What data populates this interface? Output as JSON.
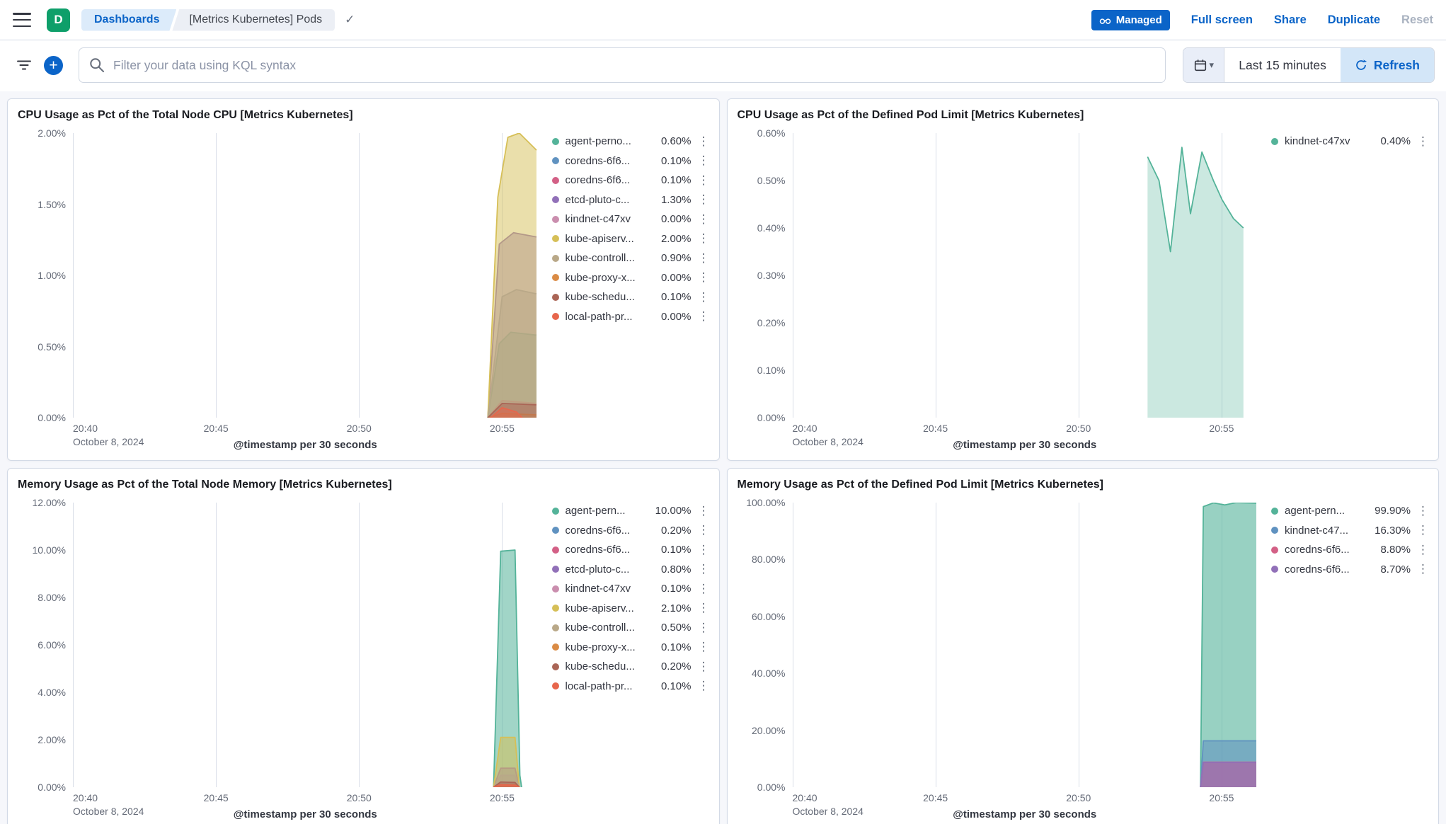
{
  "icons": {
    "legend_menu": "⋮",
    "breadcrumb_check": "✓",
    "chevron_down": "▾",
    "plus": "+"
  },
  "header": {
    "space_initial": "D",
    "breadcrumbs": [
      "Dashboards",
      "[Metrics Kubernetes] Pods"
    ],
    "managed_badge": "Managed",
    "actions": {
      "full_screen": "Full screen",
      "share": "Share",
      "duplicate": "Duplicate",
      "reset": "Reset"
    }
  },
  "toolbar": {
    "search_placeholder": "Filter your data using KQL syntax",
    "time_range": "Last 15 minutes",
    "refresh": "Refresh"
  },
  "panels": [
    {
      "title": "CPU Usage as Pct of the Total Node CPU [Metrics Kubernetes]",
      "axis_title": "@timestamp per 30 seconds",
      "chart": {
        "type": "area",
        "x_max": 16.25,
        "y_max": 2,
        "fill_opacity": 0.5,
        "x_ticks": [
          {
            "x": 0,
            "label": "20:40",
            "sub": "October 8, 2024"
          },
          {
            "x": 5,
            "label": "20:45"
          },
          {
            "x": 10,
            "label": "20:50"
          },
          {
            "x": 15,
            "label": "20:55"
          }
        ],
        "y_ticks": [
          {
            "v": 0,
            "label": "0.00%"
          },
          {
            "v": 0.5,
            "label": "0.50%"
          },
          {
            "v": 1,
            "label": "1.00%"
          },
          {
            "v": 1.5,
            "label": "1.50%"
          },
          {
            "v": 2,
            "label": "2.00%"
          }
        ],
        "series": [
          {
            "name": "agent-perno...",
            "value_label": "0.60%",
            "color": "#54B399",
            "points": [
              [
                14.5,
                0
              ],
              [
                14.9,
                0.52
              ],
              [
                15.3,
                0.6
              ],
              [
                16.2,
                0.58
              ]
            ]
          },
          {
            "name": "coredns-6f6...",
            "value_label": "0.10%",
            "color": "#6092C0",
            "points": [
              [
                14.5,
                0
              ],
              [
                15.0,
                0.1
              ],
              [
                16.2,
                0.1
              ]
            ]
          },
          {
            "name": "coredns-6f6...",
            "value_label": "0.10%",
            "color": "#D36086",
            "points": [
              [
                14.5,
                0
              ],
              [
                15.0,
                0.12
              ],
              [
                16.2,
                0.1
              ]
            ]
          },
          {
            "name": "etcd-pluto-c...",
            "value_label": "1.30%",
            "color": "#9170B8",
            "points": [
              [
                14.5,
                0
              ],
              [
                14.9,
                1.22
              ],
              [
                15.4,
                1.3
              ],
              [
                16.2,
                1.27
              ]
            ]
          },
          {
            "name": "kindnet-c47xv",
            "value_label": "0.00%",
            "color": "#CA8EAE",
            "points": [
              [
                14.5,
                0
              ],
              [
                15.0,
                0.02
              ],
              [
                16.2,
                0.02
              ]
            ]
          },
          {
            "name": "kube-apiserv...",
            "value_label": "2.00%",
            "color": "#D6BF57",
            "points": [
              [
                14.5,
                0
              ],
              [
                14.85,
                1.55
              ],
              [
                15.2,
                1.97
              ],
              [
                15.6,
                2.0
              ],
              [
                16.2,
                1.88
              ]
            ]
          },
          {
            "name": "kube-controll...",
            "value_label": "0.90%",
            "color": "#B9A888",
            "points": [
              [
                14.5,
                0
              ],
              [
                15.0,
                0.85
              ],
              [
                15.5,
                0.9
              ],
              [
                16.2,
                0.87
              ]
            ]
          },
          {
            "name": "kube-proxy-x...",
            "value_label": "0.00%",
            "color": "#DA8B45",
            "points": [
              [
                14.5,
                0
              ],
              [
                15.0,
                0.03
              ],
              [
                16.2,
                0.02
              ]
            ]
          },
          {
            "name": "kube-schedu...",
            "value_label": "0.10%",
            "color": "#AA6556",
            "points": [
              [
                14.5,
                0
              ],
              [
                15.0,
                0.1
              ],
              [
                16.2,
                0.09
              ]
            ]
          },
          {
            "name": "local-path-pr...",
            "value_label": "0.00%",
            "color": "#E7664C",
            "points": [
              [
                14.6,
                0
              ],
              [
                15.0,
                0.07
              ],
              [
                15.5,
                0.04
              ],
              [
                15.7,
                0
              ]
            ]
          }
        ]
      }
    },
    {
      "title": "CPU Usage as Pct of the Defined Pod Limit [Metrics Kubernetes]",
      "axis_title": "@timestamp per 30 seconds",
      "chart": {
        "type": "area",
        "x_max": 16.25,
        "y_max": 0.6,
        "fill_opacity": 0.3,
        "x_ticks": [
          {
            "x": 0,
            "label": "20:40",
            "sub": "October 8, 2024"
          },
          {
            "x": 5,
            "label": "20:45"
          },
          {
            "x": 10,
            "label": "20:50"
          },
          {
            "x": 15,
            "label": "20:55"
          }
        ],
        "y_ticks": [
          {
            "v": 0,
            "label": "0.00%"
          },
          {
            "v": 0.1,
            "label": "0.10%"
          },
          {
            "v": 0.2,
            "label": "0.20%"
          },
          {
            "v": 0.3,
            "label": "0.30%"
          },
          {
            "v": 0.4,
            "label": "0.40%"
          },
          {
            "v": 0.5,
            "label": "0.50%"
          },
          {
            "v": 0.6,
            "label": "0.60%"
          }
        ],
        "series": [
          {
            "name": "kindnet-c47xv",
            "value_label": "0.40%",
            "color": "#54B399",
            "points": [
              [
                12.4,
                0.55
              ],
              [
                12.8,
                0.5
              ],
              [
                13.2,
                0.35
              ],
              [
                13.6,
                0.57
              ],
              [
                13.9,
                0.43
              ],
              [
                14.3,
                0.56
              ],
              [
                14.7,
                0.5
              ],
              [
                15.0,
                0.46
              ],
              [
                15.4,
                0.42
              ],
              [
                15.75,
                0.4
              ]
            ]
          }
        ]
      }
    },
    {
      "title": "Memory Usage as Pct of the Total Node Memory [Metrics Kubernetes]",
      "axis_title": "@timestamp per 30 seconds",
      "chart": {
        "type": "area",
        "x_max": 16.25,
        "y_max": 12,
        "fill_opacity": 0.55,
        "x_ticks": [
          {
            "x": 0,
            "label": "20:40",
            "sub": "October 8, 2024"
          },
          {
            "x": 5,
            "label": "20:45"
          },
          {
            "x": 10,
            "label": "20:50"
          },
          {
            "x": 15,
            "label": "20:55"
          }
        ],
        "y_ticks": [
          {
            "v": 0,
            "label": "0.00%"
          },
          {
            "v": 2,
            "label": "2.00%"
          },
          {
            "v": 4,
            "label": "4.00%"
          },
          {
            "v": 6,
            "label": "6.00%"
          },
          {
            "v": 8,
            "label": "8.00%"
          },
          {
            "v": 10,
            "label": "10.00%"
          },
          {
            "v": 12,
            "label": "12.00%"
          }
        ],
        "series": [
          {
            "name": "agent-pern...",
            "value_label": "10.00%",
            "color": "#54B399",
            "points": [
              [
                14.7,
                0
              ],
              [
                14.95,
                9.95
              ],
              [
                15.45,
                10.0
              ],
              [
                15.62,
                0.5
              ],
              [
                15.68,
                0
              ]
            ]
          },
          {
            "name": "coredns-6f6...",
            "value_label": "0.20%",
            "color": "#6092C0",
            "points": [
              [
                14.7,
                0
              ],
              [
                14.95,
                0.2
              ],
              [
                15.45,
                0.2
              ],
              [
                15.6,
                0
              ]
            ]
          },
          {
            "name": "coredns-6f6...",
            "value_label": "0.10%",
            "color": "#D36086",
            "points": [
              [
                14.7,
                0
              ],
              [
                14.95,
                0.12
              ],
              [
                15.45,
                0.1
              ],
              [
                15.6,
                0
              ]
            ]
          },
          {
            "name": "etcd-pluto-c...",
            "value_label": "0.80%",
            "color": "#9170B8",
            "points": [
              [
                14.7,
                0
              ],
              [
                14.95,
                0.8
              ],
              [
                15.45,
                0.8
              ],
              [
                15.6,
                0
              ]
            ]
          },
          {
            "name": "kindnet-c47xv",
            "value_label": "0.10%",
            "color": "#CA8EAE",
            "points": [
              [
                14.7,
                0
              ],
              [
                14.95,
                0.1
              ],
              [
                15.45,
                0.1
              ],
              [
                15.6,
                0
              ]
            ]
          },
          {
            "name": "kube-apiserv...",
            "value_label": "2.10%",
            "color": "#D6BF57",
            "points": [
              [
                14.7,
                0
              ],
              [
                14.95,
                2.1
              ],
              [
                15.45,
                2.1
              ],
              [
                15.6,
                0
              ]
            ]
          },
          {
            "name": "kube-controll...",
            "value_label": "0.50%",
            "color": "#B9A888",
            "points": [
              [
                14.7,
                0
              ],
              [
                14.95,
                0.5
              ],
              [
                15.45,
                0.5
              ],
              [
                15.6,
                0
              ]
            ]
          },
          {
            "name": "kube-proxy-x...",
            "value_label": "0.10%",
            "color": "#DA8B45",
            "points": [
              [
                14.7,
                0
              ],
              [
                14.95,
                0.1
              ],
              [
                15.45,
                0.1
              ],
              [
                15.6,
                0
              ]
            ]
          },
          {
            "name": "kube-schedu...",
            "value_label": "0.20%",
            "color": "#AA6556",
            "points": [
              [
                14.7,
                0
              ],
              [
                14.95,
                0.22
              ],
              [
                15.45,
                0.2
              ],
              [
                15.6,
                0
              ]
            ]
          },
          {
            "name": "local-path-pr...",
            "value_label": "0.10%",
            "color": "#E7664C",
            "points": [
              [
                14.7,
                0
              ],
              [
                14.95,
                0.1
              ],
              [
                15.45,
                0.08
              ],
              [
                15.6,
                0
              ]
            ]
          }
        ]
      }
    },
    {
      "title": "Memory Usage as Pct of the Defined Pod Limit [Metrics Kubernetes]",
      "axis_title": "@timestamp per 30 seconds",
      "chart": {
        "type": "area",
        "x_max": 16.25,
        "y_max": 100,
        "fill_opacity": 0.6,
        "x_ticks": [
          {
            "x": 0,
            "label": "20:40",
            "sub": "October 8, 2024"
          },
          {
            "x": 5,
            "label": "20:45"
          },
          {
            "x": 10,
            "label": "20:50"
          },
          {
            "x": 15,
            "label": "20:55"
          }
        ],
        "y_ticks": [
          {
            "v": 0,
            "label": "0.00%"
          },
          {
            "v": 20,
            "label": "20.00%"
          },
          {
            "v": 40,
            "label": "40.00%"
          },
          {
            "v": 60,
            "label": "60.00%"
          },
          {
            "v": 80,
            "label": "80.00%"
          },
          {
            "v": 100,
            "label": "100.00%"
          }
        ],
        "series": [
          {
            "name": "agent-pern...",
            "value_label": "99.90%",
            "color": "#54B399",
            "points": [
              [
                14.25,
                0
              ],
              [
                14.35,
                98.6
              ],
              [
                14.7,
                99.9
              ],
              [
                15.1,
                99.2
              ],
              [
                15.5,
                100
              ],
              [
                16.2,
                99.8
              ]
            ]
          },
          {
            "name": "kindnet-c47...",
            "value_label": "16.30%",
            "color": "#6092C0",
            "points": [
              [
                14.25,
                0
              ],
              [
                14.35,
                16.3
              ],
              [
                16.2,
                16.3
              ]
            ]
          },
          {
            "name": "coredns-6f6...",
            "value_label": "8.80%",
            "color": "#D36086",
            "points": [
              [
                14.25,
                0
              ],
              [
                14.35,
                8.8
              ],
              [
                16.2,
                8.8
              ]
            ]
          },
          {
            "name": "coredns-6f6...",
            "value_label": "8.70%",
            "color": "#9170B8",
            "points": [
              [
                14.25,
                0
              ],
              [
                14.35,
                8.7
              ],
              [
                16.2,
                8.7
              ]
            ]
          }
        ]
      }
    }
  ]
}
